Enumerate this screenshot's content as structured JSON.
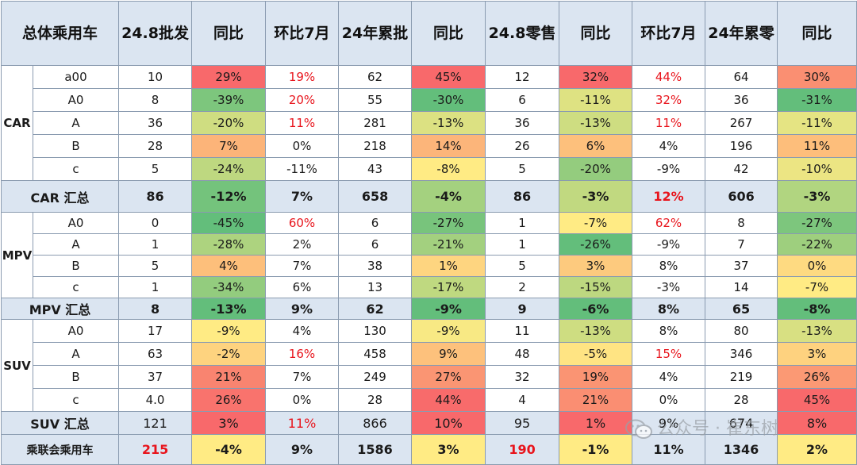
{
  "header": [
    "总体乘用车",
    "24.8批发",
    "同比",
    "环比7月",
    "24年累批",
    "同比",
    "24.8零售",
    "同比",
    "环比7月",
    "24年累零",
    "同比"
  ],
  "groups": [
    {
      "name": "CAR",
      "rows": [
        {
          "cls": "a00",
          "v": [
            "10",
            "29%",
            "19%",
            "62",
            "45%",
            "12",
            "32%",
            "44%",
            "64",
            "30%"
          ]
        },
        {
          "cls": "A0",
          "v": [
            "8",
            "-39%",
            "20%",
            "55",
            "-30%",
            "6",
            "-11%",
            "32%",
            "36",
            "-31%"
          ]
        },
        {
          "cls": "A",
          "v": [
            "36",
            "-20%",
            "11%",
            "281",
            "-13%",
            "36",
            "-13%",
            "11%",
            "267",
            "-11%"
          ]
        },
        {
          "cls": "B",
          "v": [
            "28",
            "7%",
            "0%",
            "218",
            "14%",
            "26",
            "6%",
            "4%",
            "196",
            "11%"
          ]
        },
        {
          "cls": "c",
          "v": [
            "5",
            "-24%",
            "-11%",
            "43",
            "-8%",
            "5",
            "-20%",
            "-9%",
            "42",
            "-10%"
          ]
        }
      ],
      "subtotal": {
        "label": "CAR 汇总",
        "v": [
          "86",
          "-12%",
          "7%",
          "658",
          "-4%",
          "86",
          "-3%",
          "12%",
          "606",
          "-3%"
        ]
      }
    },
    {
      "name": "MPV",
      "rows": [
        {
          "cls": "A0",
          "v": [
            "0",
            "-45%",
            "60%",
            "6",
            "-27%",
            "1",
            "-7%",
            "62%",
            "8",
            "-27%"
          ]
        },
        {
          "cls": "A",
          "v": [
            "1",
            "-28%",
            "2%",
            "6",
            "-21%",
            "1",
            "-26%",
            "-9%",
            "7",
            "-22%"
          ]
        },
        {
          "cls": "B",
          "v": [
            "5",
            "4%",
            "7%",
            "38",
            "1%",
            "5",
            "3%",
            "8%",
            "37",
            "0%"
          ]
        },
        {
          "cls": "c",
          "v": [
            "1",
            "-34%",
            "6%",
            "13",
            "-17%",
            "2",
            "-15%",
            "-3%",
            "14",
            "-7%"
          ]
        }
      ],
      "subtotal": {
        "label": "MPV 汇总",
        "v": [
          "8",
          "-13%",
          "9%",
          "62",
          "-9%",
          "9",
          "-6%",
          "8%",
          "65",
          "-8%"
        ]
      }
    },
    {
      "name": "SUV",
      "rows": [
        {
          "cls": "A0",
          "v": [
            "17",
            "-9%",
            "4%",
            "130",
            "-9%",
            "11",
            "-13%",
            "8%",
            "80",
            "-13%"
          ]
        },
        {
          "cls": "A",
          "v": [
            "63",
            "-2%",
            "16%",
            "458",
            "9%",
            "48",
            "-5%",
            "15%",
            "346",
            "3%"
          ]
        },
        {
          "cls": "B",
          "v": [
            "37",
            "21%",
            "7%",
            "249",
            "27%",
            "32",
            "19%",
            "4%",
            "219",
            "26%"
          ]
        },
        {
          "cls": "c",
          "v": [
            "4.0",
            "26%",
            "0%",
            "28",
            "44%",
            "4",
            "21%",
            "0%",
            "28",
            "45%"
          ]
        }
      ],
      "subtotal": {
        "label": "SUV 汇总",
        "v": [
          "121",
          "3%",
          "11%",
          "866",
          "10%",
          "95",
          "1%",
          "9%",
          "674",
          "8%"
        ]
      }
    }
  ],
  "total": {
    "label": "乘联会乘用车",
    "v": [
      "215",
      "-4%",
      "9%",
      "1586",
      "3%",
      "190",
      "-1%",
      "11%",
      "1346",
      "2%"
    ]
  },
  "watermark": "公众号 · 崔东树",
  "colors": {
    "header_bg": "#dbe5f1",
    "border": "#8a9bb0",
    "red_text": "#e8141c",
    "scale_high": "#f8696b",
    "scale_mid": "#ffeb84",
    "scale_low": "#63be7b"
  }
}
